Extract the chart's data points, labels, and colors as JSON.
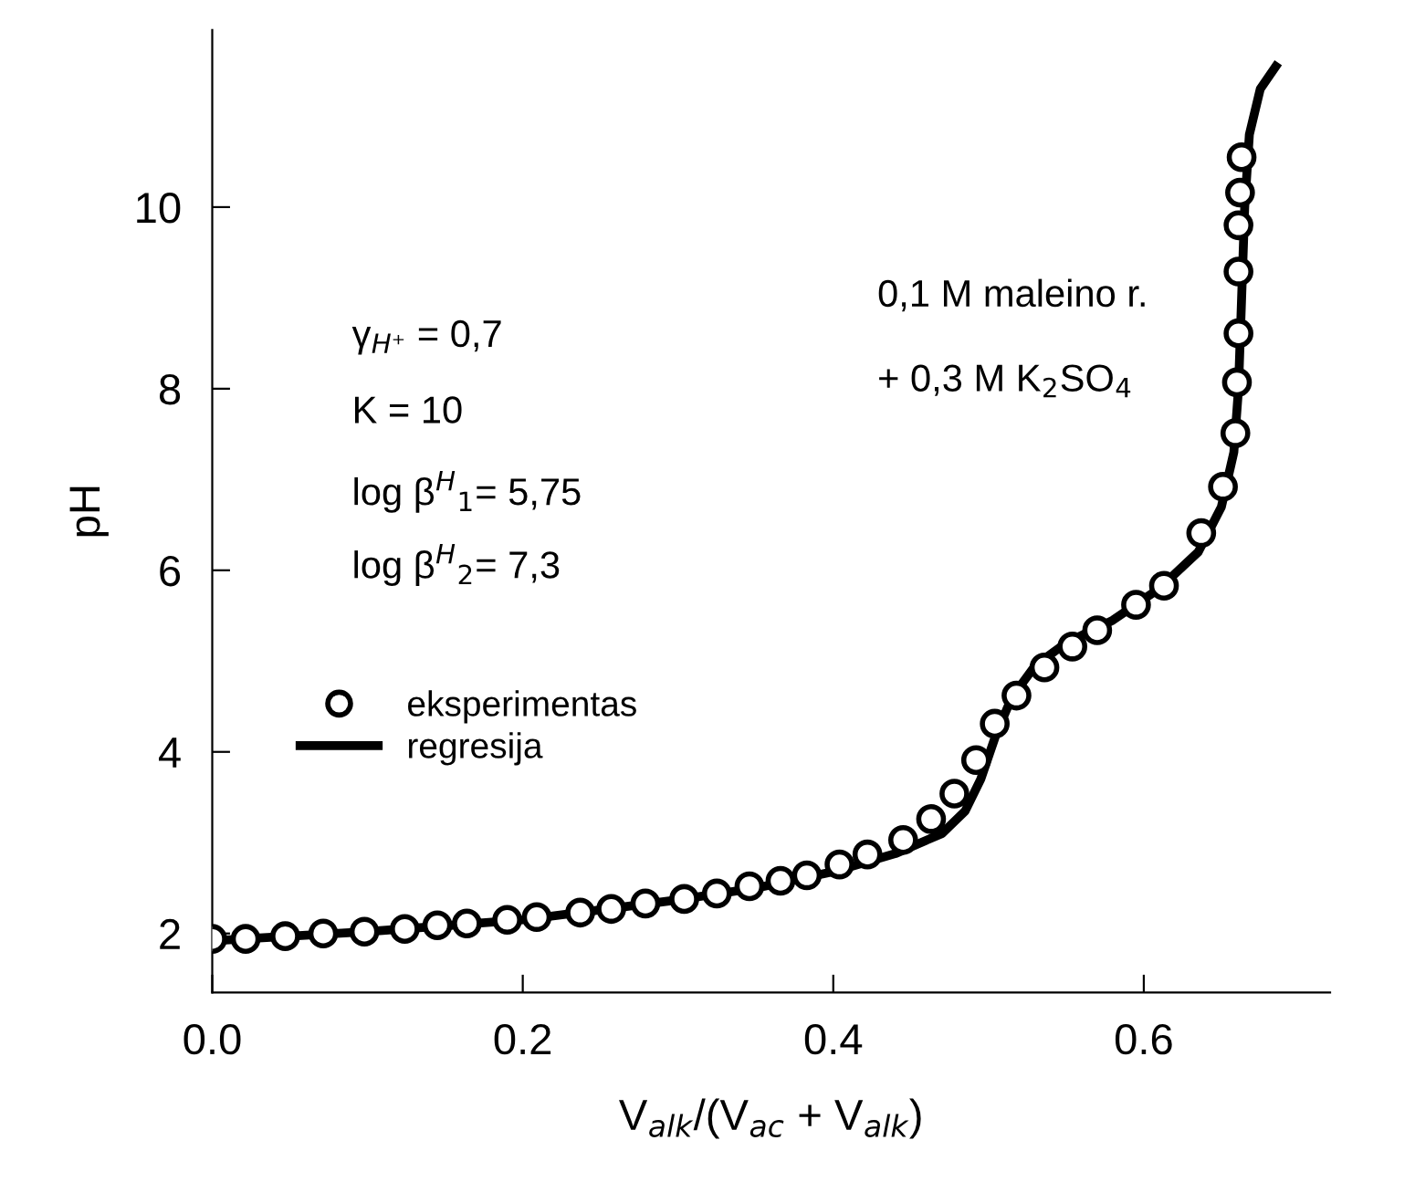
{
  "chart_data": {
    "type": "scatter",
    "xlabel": "V$_{alk}$/(V$_{ac}$ + V$_{alk}$)",
    "ylabel": "pH",
    "xlim": [
      0,
      0.72
    ],
    "ylim": [
      1.35,
      11.95
    ],
    "xticks": [
      {
        "value": 0,
        "label": "0.0"
      },
      0.2,
      0.4,
      0.6
    ],
    "yticks": [
      2,
      4,
      6,
      8,
      10
    ],
    "grid": false,
    "legend": "left",
    "annotations": [
      "γ$_{H⁺}$ = 0,7",
      "K = 10",
      "log β$^{H}$$_{1}$= 5,75",
      "log β$^{H}$$_{2}$= 7,3",
      "0,1 M maleino r.",
      "+ 0,3 M K$_{2}$SO$_{4}$"
    ],
    "series": [
      {
        "name": "eksperimentas",
        "marker": "circle",
        "color": "#000000",
        "x": [
          0,
          0.0215,
          0.047,
          0.0715,
          0.098,
          0.124,
          0.145,
          0.164,
          0.19,
          0.209,
          0.237,
          0.257,
          0.279,
          0.304,
          0.325,
          0.346,
          0.366,
          0.383,
          0.404,
          0.422,
          0.445,
          0.463,
          0.478,
          0.492,
          0.504,
          0.518,
          0.536,
          0.554,
          0.57,
          0.595,
          0.613,
          0.637,
          0.651,
          0.659,
          0.66,
          0.661,
          0.661,
          0.661,
          0.662,
          0.663
        ],
        "values": [
          1.94,
          1.94,
          1.97,
          2.0,
          2.02,
          2.05,
          2.09,
          2.11,
          2.15,
          2.18,
          2.23,
          2.27,
          2.33,
          2.38,
          2.44,
          2.52,
          2.58,
          2.64,
          2.76,
          2.87,
          3.03,
          3.26,
          3.54,
          3.91,
          4.31,
          4.62,
          4.93,
          5.16,
          5.34,
          5.62,
          5.83,
          6.41,
          6.92,
          7.51,
          8.07,
          8.61,
          9.29,
          9.8,
          10.16,
          10.55
        ]
      },
      {
        "name": "regresija",
        "type": "line",
        "color": "#000000",
        "x": [
          0,
          0.1,
          0.2,
          0.3,
          0.35,
          0.4,
          0.44,
          0.47,
          0.485,
          0.495,
          0.505,
          0.515,
          0.53,
          0.55,
          0.58,
          0.61,
          0.635,
          0.65,
          0.658,
          0.661,
          0.663,
          0.665,
          0.668,
          0.675,
          0.685
        ],
        "values": [
          1.92,
          2.02,
          2.15,
          2.37,
          2.5,
          2.68,
          2.88,
          3.1,
          3.35,
          3.7,
          4.2,
          4.6,
          4.95,
          5.2,
          5.45,
          5.8,
          6.2,
          6.7,
          7.3,
          8.0,
          9.0,
          10.0,
          10.8,
          11.3,
          11.55
        ]
      }
    ]
  }
}
